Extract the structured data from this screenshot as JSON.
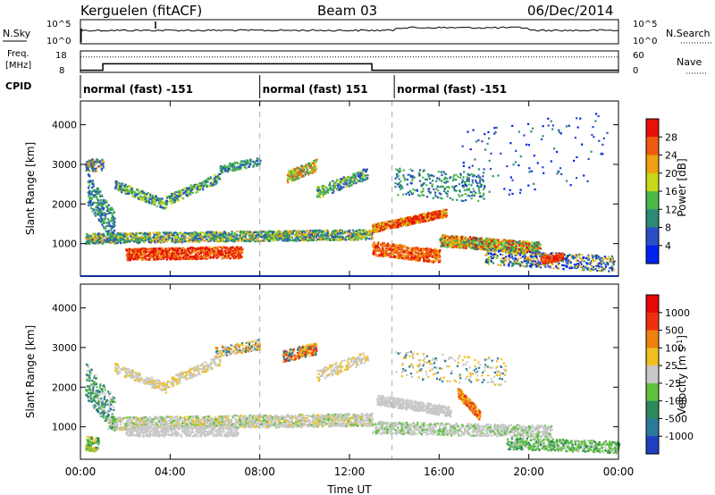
{
  "header": {
    "station": "Kerguelen (fitACF)",
    "beam": "Beam 03",
    "date": "06/Dec/2014"
  },
  "nsky_panel": {
    "left_label": "N.Sky",
    "right_label": "N.Search",
    "yticks_left": [
      "10^5",
      "10^0"
    ],
    "yticks_right": [
      "10^5",
      "10^0"
    ]
  },
  "freq_panel": {
    "left_label_1": "Freq.",
    "left_label_2": "[MHz]",
    "right_label": "Nave",
    "yticks_left": [
      "18",
      "8"
    ],
    "yticks_right": [
      "60",
      "0"
    ],
    "freq_steps": [
      [
        0,
        9
      ],
      [
        1.0,
        12
      ],
      [
        13.0,
        9
      ],
      [
        24,
        9
      ]
    ],
    "nave_level": 0.72
  },
  "cpid": {
    "label": "CPID",
    "segments": [
      {
        "start_h": 0,
        "text": "normal (fast) -151"
      },
      {
        "start_h": 8,
        "text": "normal (fast) 151"
      },
      {
        "start_h": 14,
        "text": "normal (fast) -151"
      }
    ]
  },
  "chart_data": [
    {
      "type": "heatmap",
      "name": "power",
      "ylabel": "Slant Range [km]",
      "yticks": [
        "4000",
        "3000",
        "2000",
        "1000"
      ],
      "ylim": [
        180,
        4600
      ],
      "xlim_hours": [
        0,
        24
      ],
      "colorbar": {
        "label": "Power [dB]",
        "ticks": [
          "28",
          "24",
          "20",
          "16",
          "12",
          "8",
          "4"
        ],
        "colors": [
          "#0022ee",
          "#2a4dc8",
          "#2c8a76",
          "#4cb848",
          "#c8d818",
          "#f0a010",
          "#ee5a10",
          "#e81008"
        ]
      }
    },
    {
      "type": "heatmap",
      "name": "velocity",
      "ylabel": "Slant Range [km]",
      "yticks": [
        "4000",
        "3000",
        "2000",
        "1000"
      ],
      "ylim": [
        180,
        4600
      ],
      "xlim_hours": [
        0,
        24
      ],
      "xticks": [
        "00:00",
        "04:00",
        "08:00",
        "12:00",
        "16:00",
        "20:00",
        "00:00"
      ],
      "xlabel": "Time UT",
      "colorbar": {
        "label": "Velocity [m s^-1]",
        "ticks": [
          "1000",
          "500",
          "100",
          "25",
          "-25",
          "-100",
          "-500",
          "-1000"
        ],
        "colors": [
          "#2040c0",
          "#2a7a9a",
          "#2e8a5a",
          "#60c040",
          "#c8c8c8",
          "#f0c020",
          "#f08010",
          "#ee3010",
          "#e80808"
        ]
      }
    }
  ]
}
